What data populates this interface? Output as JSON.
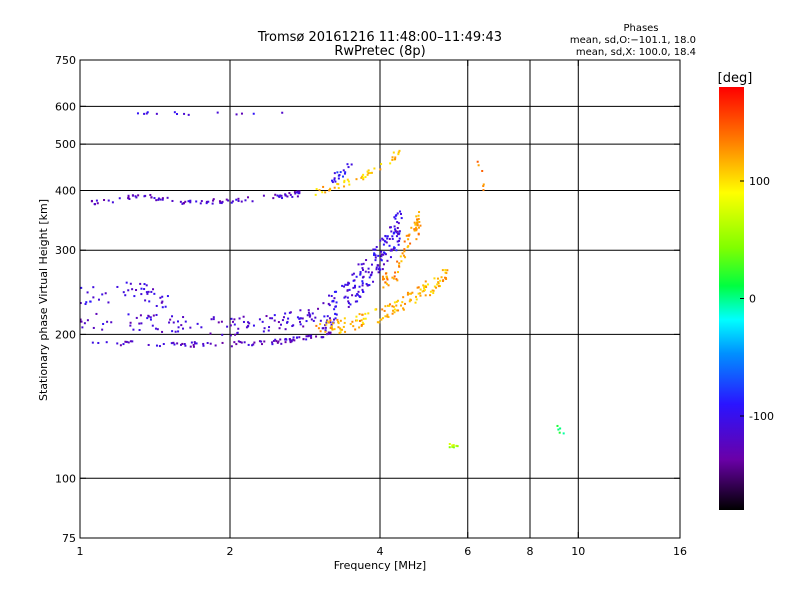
{
  "chart_data": {
    "type": "scatter",
    "title": "Tromsø 20161216 11:48:00–11:49:43",
    "subtitle": "RwPretec (8p)",
    "phases": {
      "heading": "Phases",
      "line1": "mean, sd,O:−101.1, 18.0",
      "line2": "mean, sd,X: 100.0, 18.4"
    },
    "xlabel": "Frequency [MHz]",
    "ylabel": "Stationary phase Virtual Height [km]",
    "x_scale": "log",
    "y_scale": "log",
    "xlim": [
      1,
      16
    ],
    "ylim": [
      75,
      750
    ],
    "x_ticks": [
      1,
      2,
      4,
      6,
      8,
      10,
      16
    ],
    "y_ticks": [
      75,
      100,
      200,
      300,
      400,
      500,
      600,
      750
    ],
    "x_gridlines": [
      2,
      4,
      6,
      8,
      10
    ],
    "y_gridlines": [
      100,
      200,
      300,
      400,
      500,
      600
    ],
    "colorbar": {
      "label": "[deg]",
      "range": [
        -180,
        180
      ],
      "ticks": [
        100,
        0,
        -100
      ]
    },
    "series": [
      {
        "segments": [
          [
            1.0,
            193,
            1.5,
            190,
            2.0,
            191,
            2.5,
            193,
            2.9,
            198,
            3.2,
            201
          ]
        ],
        "phase": -120,
        "jitter": 0.012,
        "density": 95
      },
      {
        "segments": [
          [
            1.0,
            215,
            1.5,
            210,
            2.0,
            208,
            2.5,
            212,
            3.0,
            218
          ]
        ],
        "phase": -115,
        "jitter": 0.045,
        "density": 120
      },
      {
        "segments": [
          [
            1.0,
            240,
            1.3,
            245,
            1.5,
            238
          ]
        ],
        "phase": -110,
        "jitter": 0.05,
        "density": 45
      },
      {
        "segments": [
          [
            3.0,
            215,
            3.3,
            230,
            3.6,
            255,
            3.9,
            280,
            4.2,
            310,
            4.4,
            340
          ]
        ],
        "phase": -105,
        "jitter": 0.08,
        "density": 190
      },
      {
        "segments": [
          [
            3.0,
            205,
            3.5,
            210,
            4.0,
            220,
            4.5,
            235,
            5.0,
            250,
            5.5,
            270
          ]
        ],
        "phase": 115,
        "jitter": 0.035,
        "density": 140
      },
      {
        "segments": [
          [
            4.0,
            250,
            4.3,
            270,
            4.5,
            300,
            4.7,
            330,
            4.8,
            345
          ]
        ],
        "phase": 125,
        "jitter": 0.05,
        "density": 70
      },
      {
        "segments": [
          [
            1.05,
            375,
            1.3,
            390,
            1.6,
            378,
            2.0,
            380,
            2.5,
            388,
            2.8,
            395
          ]
        ],
        "phase": -118,
        "jitter": 0.012,
        "density": 90
      },
      {
        "segments": [
          [
            2.9,
            395,
            3.3,
            410,
            3.6,
            425,
            3.9,
            440,
            4.2,
            460,
            4.4,
            490
          ]
        ],
        "phase": 110,
        "jitter": 0.015,
        "density": 45
      },
      {
        "segments": [
          [
            3.2,
            420,
            3.5,
            450
          ]
        ],
        "phase": -95,
        "jitter": 0.03,
        "density": 18
      },
      {
        "segments": [
          [
            1.3,
            578,
            2.6,
            582
          ]
        ],
        "phase": -110,
        "jitter": 0.01,
        "density": 14
      },
      {
        "segments": [
          [
            6.3,
            480,
            6.5,
            380
          ]
        ],
        "phase": 130,
        "jitter": 0.02,
        "density": 6
      },
      {
        "segments": [
          [
            9.0,
            130,
            9.3,
            125
          ]
        ],
        "phase": 10,
        "jitter": 0.02,
        "density": 5
      },
      {
        "segments": [
          [
            5.5,
            117,
            5.8,
            117
          ]
        ],
        "phase": 60,
        "jitter": 0.01,
        "density": 8
      }
    ]
  }
}
